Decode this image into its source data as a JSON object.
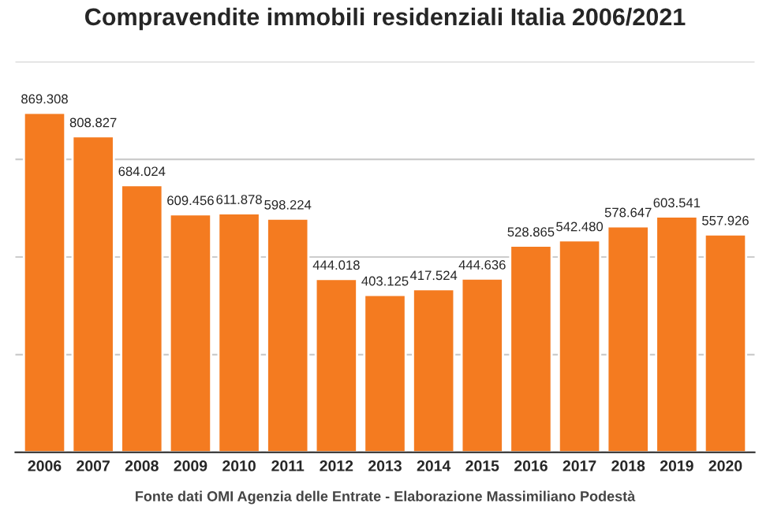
{
  "chart_data": {
    "type": "bar",
    "title": "Compravendite immobili residenziali Italia 2006/2021",
    "categories": [
      "2006",
      "2007",
      "2008",
      "2009",
      "2010",
      "2011",
      "2012",
      "2013",
      "2014",
      "2015",
      "2016",
      "2017",
      "2018",
      "2019",
      "2020"
    ],
    "values": [
      869308,
      808827,
      684024,
      609456,
      611878,
      598224,
      444018,
      403125,
      417524,
      444636,
      528865,
      542480,
      578647,
      603541,
      557926
    ],
    "value_labels": [
      "869.308",
      "808.827",
      "684.024",
      "609.456",
      "611.878",
      "598.224",
      "444.018",
      "403.125",
      "417.524",
      "444.636",
      "528.865",
      "542.480",
      "578.647",
      "603.541",
      "557.926"
    ],
    "color": "#f47b20",
    "ylim": [
      0,
      1000000
    ],
    "yticks": [
      {
        "value": 0,
        "label": null
      },
      {
        "value": 250000,
        "label": null
      },
      {
        "value": 500000,
        "label": null
      },
      {
        "value": 750000,
        "label": null
      },
      {
        "value": 1000000,
        "label": null
      }
    ],
    "tick_labels": "x",
    "grid": "y",
    "annotations": [
      "Fonte dati OMI Agenzia delle Entrate - Elaborazione Massimiliano Podestà"
    ]
  }
}
